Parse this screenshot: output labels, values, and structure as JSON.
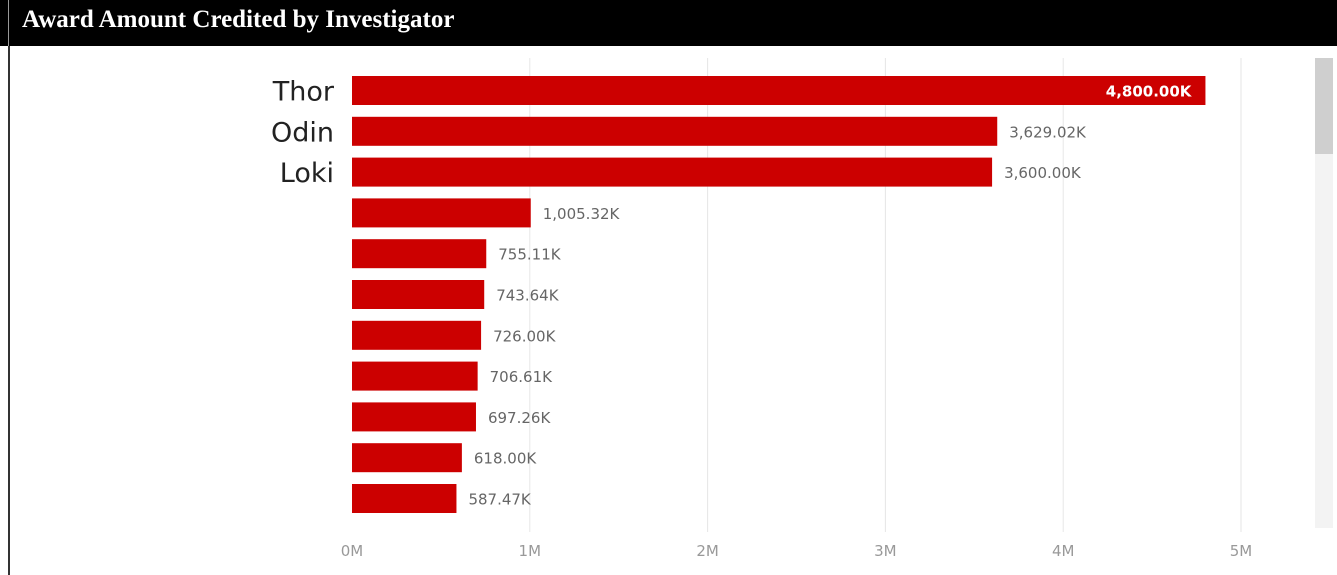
{
  "title": "Award Amount Credited by Investigator",
  "colors": {
    "bar": "#cc0000",
    "title_bg": "#000000",
    "grid": "#e6e6e6",
    "label": "#666666",
    "axis_tick": "#999999"
  },
  "chart_data": {
    "type": "bar",
    "orientation": "horizontal",
    "categories": [
      "Thor",
      "Odin",
      "Loki",
      "",
      "",
      "",
      "",
      "",
      "",
      "",
      ""
    ],
    "values": [
      4800000,
      3629020,
      3600000,
      1005320,
      755110,
      743640,
      726000,
      706610,
      697260,
      618000,
      587470
    ],
    "data_labels": [
      "4,800.00K",
      "3,629.02K",
      "3,600.00K",
      "1,005.32K",
      "755.11K",
      "743.64K",
      "726.00K",
      "706.61K",
      "697.26K",
      "618.00K",
      "587.47K"
    ],
    "xticks": [
      "0M",
      "1M",
      "2M",
      "3M",
      "4M",
      "5M"
    ],
    "xtick_values": [
      0,
      1000000,
      2000000,
      3000000,
      4000000,
      5000000
    ],
    "xlim": [
      0,
      5000000
    ],
    "grid": true,
    "title": "Award Amount Credited by Investigator",
    "xlabel": "",
    "ylabel": ""
  }
}
